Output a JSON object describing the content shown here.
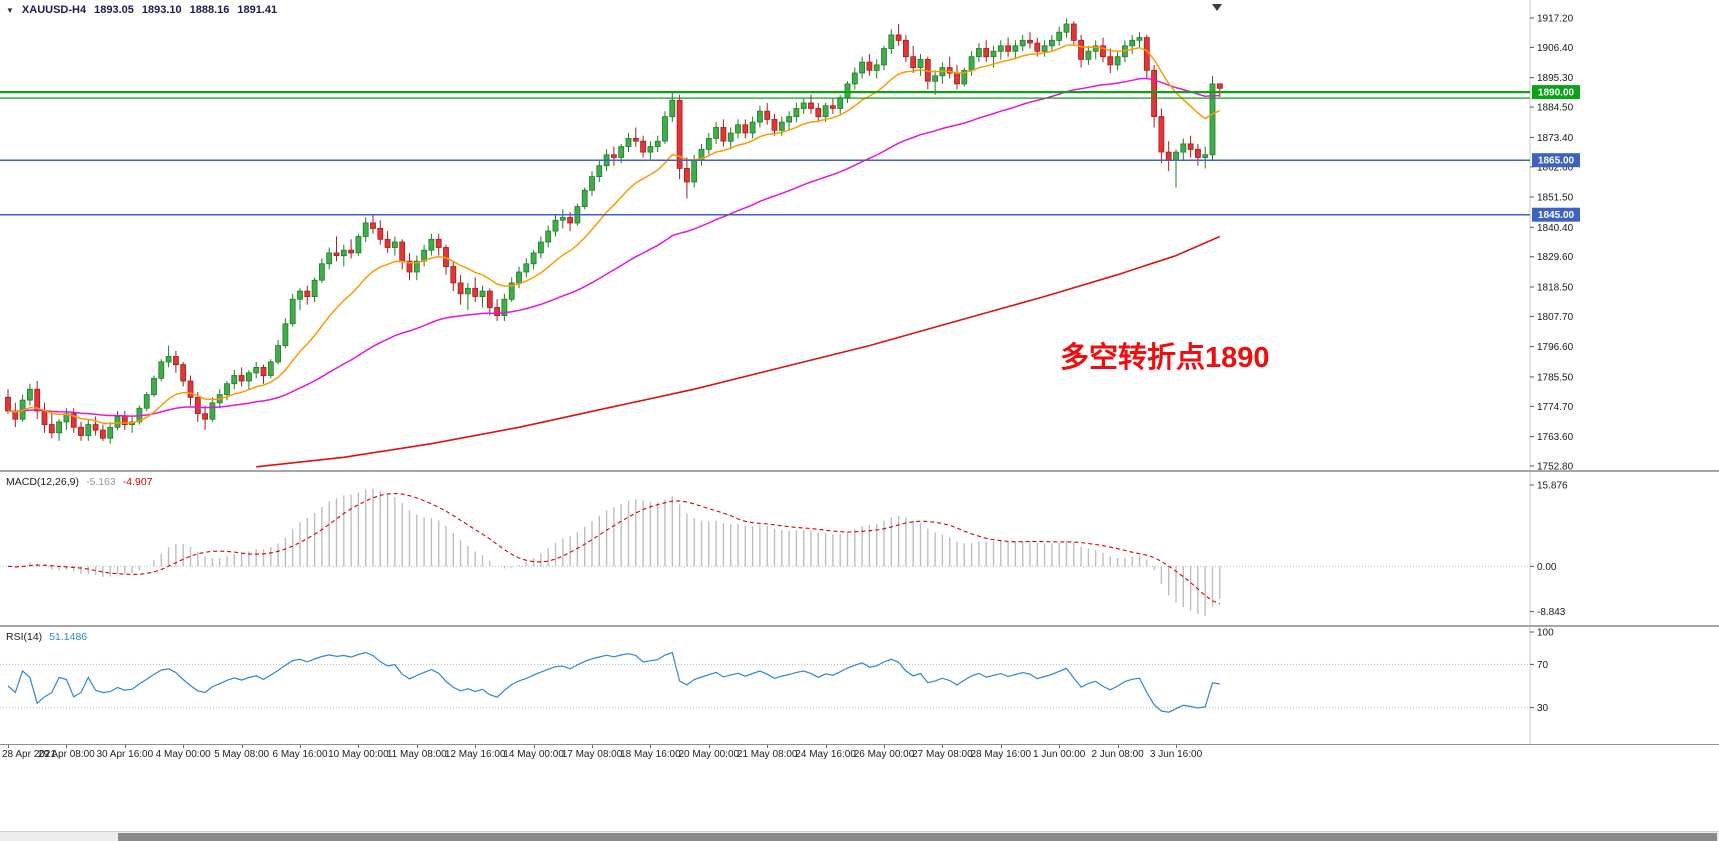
{
  "header": {
    "dropdown_icon": "▼",
    "symbol": "XAUUSD-H4",
    "open": "1893.05",
    "high": "1893.10",
    "low": "1888.16",
    "close": "1891.41"
  },
  "annotation": {
    "text": "多空转折点1890",
    "color": "#f00d0d"
  },
  "colors": {
    "background": "#ffffff",
    "up": "#3fae49",
    "up_border": "#1e7d28",
    "down": "#e23636",
    "down_border": "#a51d1d",
    "axis_text": "#1a1a1a",
    "grid": "#b4b4b4"
  },
  "chart_data": {
    "type": "candlestick",
    "symbol": "XAUUSD",
    "timeframe": "H4",
    "y_range": [
      1752.8,
      1917.2
    ],
    "price_axis_ticks": [
      "1917.20",
      "1906.40",
      "1895.30",
      "1884.50",
      "1873.40",
      "1862.60",
      "1851.50",
      "1840.40",
      "1829.60",
      "1818.50",
      "1807.70",
      "1796.60",
      "1785.50",
      "1774.70",
      "1763.60",
      "1752.80"
    ],
    "x_labels": [
      "28 Apr 2021",
      "29 Apr 08:00",
      "30 Apr 16:00",
      "4 May 00:00",
      "5 May 08:00",
      "6 May 16:00",
      "10 May 00:00",
      "11 May 08:00",
      "12 May 16:00",
      "14 May 00:00",
      "17 May 08:00",
      "18 May 16:00",
      "20 May 00:00",
      "21 May 08:00",
      "24 May 16:00",
      "26 May 00:00",
      "27 May 08:00",
      "28 May 16:00",
      "1 Jun 00:00",
      "2 Jun 08:00",
      "3 Jun 16:00"
    ],
    "bars_per_label": 8,
    "candles": [
      [
        1778,
        1781,
        1772,
        1773
      ],
      [
        1773,
        1776,
        1767,
        1770
      ],
      [
        1770,
        1779,
        1769,
        1777
      ],
      [
        1777,
        1783,
        1775,
        1781
      ],
      [
        1781,
        1784,
        1770,
        1773
      ],
      [
        1773,
        1776,
        1765,
        1768
      ],
      [
        1768,
        1772,
        1763,
        1765
      ],
      [
        1765,
        1770,
        1762,
        1769
      ],
      [
        1769,
        1774,
        1766,
        1772
      ],
      [
        1772,
        1774,
        1765,
        1767
      ],
      [
        1767,
        1769,
        1762,
        1764
      ],
      [
        1764,
        1770,
        1762,
        1768
      ],
      [
        1768,
        1771,
        1764,
        1766
      ],
      [
        1766,
        1768,
        1762,
        1763
      ],
      [
        1763,
        1769,
        1761,
        1767
      ],
      [
        1767,
        1773,
        1766,
        1771
      ],
      [
        1771,
        1773,
        1766,
        1768
      ],
      [
        1768,
        1771,
        1765,
        1769
      ],
      [
        1769,
        1775,
        1768,
        1774
      ],
      [
        1774,
        1780,
        1773,
        1779
      ],
      [
        1779,
        1786,
        1778,
        1785
      ],
      [
        1785,
        1792,
        1784,
        1791
      ],
      [
        1791,
        1797,
        1789,
        1793
      ],
      [
        1793,
        1795,
        1787,
        1790
      ],
      [
        1790,
        1791,
        1782,
        1784
      ],
      [
        1784,
        1786,
        1775,
        1778
      ],
      [
        1778,
        1780,
        1769,
        1772
      ],
      [
        1772,
        1775,
        1766,
        1770
      ],
      [
        1770,
        1778,
        1769,
        1776
      ],
      [
        1776,
        1781,
        1774,
        1779
      ],
      [
        1779,
        1784,
        1777,
        1783
      ],
      [
        1783,
        1788,
        1781,
        1786
      ],
      [
        1786,
        1789,
        1782,
        1784
      ],
      [
        1784,
        1788,
        1781,
        1787
      ],
      [
        1787,
        1791,
        1785,
        1789
      ],
      [
        1789,
        1790,
        1783,
        1786
      ],
      [
        1786,
        1792,
        1785,
        1791
      ],
      [
        1791,
        1799,
        1790,
        1797
      ],
      [
        1797,
        1807,
        1796,
        1805
      ],
      [
        1805,
        1816,
        1804,
        1814
      ],
      [
        1814,
        1818,
        1810,
        1817
      ],
      [
        1817,
        1819,
        1812,
        1815
      ],
      [
        1815,
        1822,
        1813,
        1821
      ],
      [
        1821,
        1829,
        1820,
        1827
      ],
      [
        1827,
        1833,
        1825,
        1831
      ],
      [
        1831,
        1837,
        1828,
        1830
      ],
      [
        1830,
        1834,
        1826,
        1832
      ],
      [
        1832,
        1836,
        1829,
        1831
      ],
      [
        1831,
        1838,
        1830,
        1837
      ],
      [
        1837,
        1844,
        1835,
        1842
      ],
      [
        1842,
        1845,
        1838,
        1840
      ],
      [
        1840,
        1843,
        1834,
        1836
      ],
      [
        1836,
        1839,
        1831,
        1833
      ],
      [
        1833,
        1837,
        1830,
        1835
      ],
      [
        1835,
        1836,
        1825,
        1828
      ],
      [
        1828,
        1831,
        1821,
        1824
      ],
      [
        1824,
        1830,
        1821,
        1828
      ],
      [
        1828,
        1834,
        1826,
        1832
      ],
      [
        1832,
        1838,
        1830,
        1836
      ],
      [
        1836,
        1838,
        1830,
        1833
      ],
      [
        1833,
        1834,
        1823,
        1826
      ],
      [
        1826,
        1828,
        1817,
        1820
      ],
      [
        1820,
        1823,
        1812,
        1816
      ],
      [
        1816,
        1820,
        1810,
        1818
      ],
      [
        1818,
        1822,
        1813,
        1815
      ],
      [
        1815,
        1819,
        1811,
        1817
      ],
      [
        1817,
        1818,
        1808,
        1811
      ],
      [
        1811,
        1814,
        1806,
        1808
      ],
      [
        1808,
        1816,
        1806,
        1814
      ],
      [
        1814,
        1822,
        1813,
        1820
      ],
      [
        1820,
        1826,
        1818,
        1824
      ],
      [
        1824,
        1829,
        1822,
        1827
      ],
      [
        1827,
        1832,
        1825,
        1831
      ],
      [
        1831,
        1837,
        1829,
        1835
      ],
      [
        1835,
        1841,
        1833,
        1839
      ],
      [
        1839,
        1845,
        1837,
        1843
      ],
      [
        1843,
        1847,
        1840,
        1844
      ],
      [
        1844,
        1846,
        1839,
        1842
      ],
      [
        1842,
        1849,
        1841,
        1848
      ],
      [
        1848,
        1855,
        1847,
        1854
      ],
      [
        1854,
        1861,
        1852,
        1859
      ],
      [
        1859,
        1865,
        1857,
        1863
      ],
      [
        1863,
        1869,
        1861,
        1867
      ],
      [
        1867,
        1870,
        1863,
        1866
      ],
      [
        1866,
        1871,
        1864,
        1870
      ],
      [
        1870,
        1875,
        1868,
        1873
      ],
      [
        1873,
        1877,
        1870,
        1872
      ],
      [
        1872,
        1874,
        1866,
        1868
      ],
      [
        1868,
        1872,
        1865,
        1870
      ],
      [
        1870,
        1874,
        1868,
        1872
      ],
      [
        1872,
        1883,
        1871,
        1881
      ],
      [
        1881,
        1890,
        1879,
        1887
      ],
      [
        1887,
        1889,
        1858,
        1862
      ],
      [
        1862,
        1866,
        1851,
        1857
      ],
      [
        1857,
        1867,
        1855,
        1865
      ],
      [
        1865,
        1871,
        1863,
        1869
      ],
      [
        1869,
        1875,
        1867,
        1873
      ],
      [
        1873,
        1879,
        1871,
        1877
      ],
      [
        1877,
        1880,
        1870,
        1872
      ],
      [
        1872,
        1877,
        1869,
        1875
      ],
      [
        1875,
        1880,
        1873,
        1878
      ],
      [
        1878,
        1880,
        1873,
        1875
      ],
      [
        1875,
        1881,
        1873,
        1879
      ],
      [
        1879,
        1885,
        1877,
        1883
      ],
      [
        1883,
        1886,
        1878,
        1880
      ],
      [
        1880,
        1882,
        1874,
        1876
      ],
      [
        1876,
        1881,
        1874,
        1879
      ],
      [
        1879,
        1883,
        1876,
        1881
      ],
      [
        1881,
        1886,
        1879,
        1884
      ],
      [
        1884,
        1888,
        1882,
        1886
      ],
      [
        1886,
        1889,
        1882,
        1884
      ],
      [
        1884,
        1886,
        1879,
        1881
      ],
      [
        1881,
        1886,
        1879,
        1885
      ],
      [
        1885,
        1888,
        1882,
        1884
      ],
      [
        1884,
        1889,
        1882,
        1888
      ],
      [
        1888,
        1894,
        1886,
        1893
      ],
      [
        1893,
        1899,
        1891,
        1897
      ],
      [
        1897,
        1903,
        1895,
        1901
      ],
      [
        1901,
        1904,
        1896,
        1898
      ],
      [
        1898,
        1902,
        1895,
        1900
      ],
      [
        1900,
        1907,
        1898,
        1906
      ],
      [
        1906,
        1913,
        1904,
        1911
      ],
      [
        1911,
        1915,
        1907,
        1909
      ],
      [
        1909,
        1911,
        1901,
        1903
      ],
      [
        1903,
        1907,
        1897,
        1899
      ],
      [
        1899,
        1904,
        1896,
        1902
      ],
      [
        1902,
        1903,
        1891,
        1894
      ],
      [
        1894,
        1898,
        1889,
        1896
      ],
      [
        1896,
        1901,
        1893,
        1899
      ],
      [
        1899,
        1903,
        1895,
        1897
      ],
      [
        1897,
        1900,
        1891,
        1893
      ],
      [
        1893,
        1899,
        1892,
        1898
      ],
      [
        1898,
        1905,
        1896,
        1903
      ],
      [
        1903,
        1908,
        1901,
        1906
      ],
      [
        1906,
        1909,
        1901,
        1903
      ],
      [
        1903,
        1907,
        1899,
        1905
      ],
      [
        1905,
        1909,
        1902,
        1907
      ],
      [
        1907,
        1910,
        1903,
        1905
      ],
      [
        1905,
        1909,
        1902,
        1907
      ],
      [
        1907,
        1911,
        1905,
        1909
      ],
      [
        1909,
        1912,
        1906,
        1908
      ],
      [
        1908,
        1910,
        1903,
        1905
      ],
      [
        1905,
        1909,
        1903,
        1907
      ],
      [
        1907,
        1911,
        1905,
        1909
      ],
      [
        1909,
        1914,
        1907,
        1912
      ],
      [
        1912,
        1917,
        1910,
        1915
      ],
      [
        1915,
        1916,
        1907,
        1909
      ],
      [
        1909,
        1911,
        1899,
        1902
      ],
      [
        1902,
        1907,
        1900,
        1905
      ],
      [
        1905,
        1909,
        1902,
        1907
      ],
      [
        1907,
        1910,
        1901,
        1903
      ],
      [
        1903,
        1906,
        1897,
        1900
      ],
      [
        1900,
        1905,
        1898,
        1903
      ],
      [
        1903,
        1909,
        1901,
        1907
      ],
      [
        1907,
        1911,
        1904,
        1909
      ],
      [
        1909,
        1912,
        1906,
        1910
      ],
      [
        1910,
        1911,
        1895,
        1898
      ],
      [
        1898,
        1900,
        1877,
        1881
      ],
      [
        1881,
        1884,
        1864,
        1868
      ],
      [
        1868,
        1872,
        1861,
        1865
      ],
      [
        1865,
        1869,
        1855,
        1868
      ],
      [
        1868,
        1873,
        1865,
        1871
      ],
      [
        1871,
        1874,
        1866,
        1869
      ],
      [
        1869,
        1871,
        1863,
        1866
      ],
      [
        1866,
        1870,
        1862,
        1867
      ],
      [
        1867,
        1896,
        1865,
        1893
      ],
      [
        1893.05,
        1893.1,
        1888.16,
        1891.41
      ]
    ],
    "horizontal_lines": [
      {
        "price": 1890.0,
        "color": "#0aa318",
        "width": 2.2,
        "label": "1890.00"
      },
      {
        "price": 1887.8,
        "color": "#0aa318",
        "width": 1.2,
        "label": ""
      },
      {
        "price": 1865.0,
        "color": "#3e62c4",
        "width": 1.5,
        "label": "1865.00"
      },
      {
        "price": 1845.0,
        "color": "#3e62c4",
        "width": 1.5,
        "label": "1845.00"
      }
    ],
    "moving_averages": [
      {
        "name": "fast-ma",
        "color": "#ff9900"
      },
      {
        "name": "medium-ma",
        "color": "#e715dc"
      },
      {
        "name": "slow-ma",
        "color": "#dd1111",
        "points": [
          [
            34,
            1752.5
          ],
          [
            46,
            1756
          ],
          [
            58,
            1761
          ],
          [
            70,
            1767
          ],
          [
            82,
            1774
          ],
          [
            94,
            1781
          ],
          [
            106,
            1789
          ],
          [
            118,
            1797
          ],
          [
            130,
            1806
          ],
          [
            142,
            1815
          ],
          [
            152,
            1823
          ],
          [
            160,
            1830
          ],
          [
            166,
            1837
          ]
        ]
      }
    ],
    "macd": {
      "label": "MACD(12,26,9)",
      "main_value": "-5.163",
      "signal_value": "-4.907",
      "axis_ticks": [
        "15.876",
        "0.00",
        "-8.843"
      ],
      "histogram_color": "#bdbdbd",
      "signal_color": "#d40000"
    },
    "rsi": {
      "label": "RSI(14)",
      "value": "51.1486",
      "levels": [
        70,
        30
      ],
      "axis_ticks": [
        "100",
        "70",
        "30"
      ],
      "line_color": "#2e86d5"
    }
  }
}
